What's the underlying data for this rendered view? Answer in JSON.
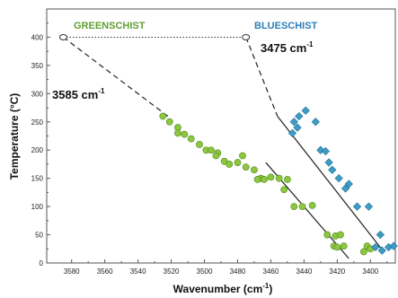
{
  "chart_data": {
    "type": "scatter",
    "xlabel": "Wavenumber",
    "xlabel_unit_base": "cm",
    "xlabel_unit_exp": "-1",
    "ylabel": "Temperature (°C)",
    "xlim": [
      3595,
      3385
    ],
    "ylim": [
      0,
      450
    ],
    "x_reversed": true,
    "x_ticks": [
      3580,
      3560,
      3540,
      3520,
      3500,
      3480,
      3460,
      3440,
      3420,
      3400
    ],
    "y_ticks": [
      0,
      50,
      100,
      150,
      200,
      250,
      300,
      350,
      400
    ],
    "grid": false,
    "series": [
      {
        "name": "GREENSCHIST",
        "color": "#8dc63f",
        "marker": "circle",
        "points": [
          [
            3525,
            260
          ],
          [
            3521,
            250
          ],
          [
            3516,
            240
          ],
          [
            3516,
            230
          ],
          [
            3512,
            228
          ],
          [
            3508,
            220
          ],
          [
            3503,
            210
          ],
          [
            3499,
            200
          ],
          [
            3496,
            200
          ],
          [
            3492,
            195
          ],
          [
            3493,
            190
          ],
          [
            3488,
            180
          ],
          [
            3485,
            175
          ],
          [
            3480,
            178
          ],
          [
            3477,
            190
          ],
          [
            3475,
            170
          ],
          [
            3470,
            165
          ],
          [
            3466,
            150
          ],
          [
            3468,
            148
          ],
          [
            3464,
            148
          ],
          [
            3460,
            152
          ],
          [
            3455,
            150
          ],
          [
            3450,
            148
          ],
          [
            3452,
            130
          ],
          [
            3446,
            100
          ],
          [
            3441,
            100
          ],
          [
            3435,
            102
          ],
          [
            3426,
            50
          ],
          [
            3421,
            48
          ],
          [
            3418,
            50
          ],
          [
            3422,
            30
          ],
          [
            3420,
            28
          ],
          [
            3416,
            30
          ],
          [
            3402,
            30
          ],
          [
            3400,
            25
          ],
          [
            3404,
            20
          ]
        ],
        "fit_from": [
          3463,
          178
        ],
        "fit_to": [
          3413,
          8
        ]
      },
      {
        "name": "BLUESCHIST",
        "color": "#3d9cc6",
        "marker": "diamond",
        "points": [
          [
            3446,
            250
          ],
          [
            3443,
            260
          ],
          [
            3444,
            240
          ],
          [
            3447,
            230
          ],
          [
            3439,
            270
          ],
          [
            3433,
            250
          ],
          [
            3430,
            200
          ],
          [
            3427,
            198
          ],
          [
            3425,
            178
          ],
          [
            3423,
            165
          ],
          [
            3419,
            150
          ],
          [
            3415,
            132
          ],
          [
            3413,
            140
          ],
          [
            3408,
            100
          ],
          [
            3401,
            100
          ],
          [
            3397,
            28
          ],
          [
            3393,
            22
          ],
          [
            3394,
            50
          ],
          [
            3389,
            28
          ],
          [
            3386,
            30
          ]
        ],
        "fit_from": [
          3456,
          260
        ],
        "fit_to": [
          3392,
          20
        ]
      }
    ],
    "annotations": [
      {
        "value_base": "3585 cm",
        "value_exp": "-1",
        "at": [
          3585,
          400
        ]
      },
      {
        "value_base": "3475 cm",
        "value_exp": "-1",
        "at": [
          3475,
          400
        ]
      }
    ],
    "dotted_line": {
      "y": 400,
      "from_x": 3585,
      "to_x": 3475
    },
    "extrapolations": [
      {
        "from": [
          3585,
          400
        ],
        "to": [
          3522,
          260
        ]
      },
      {
        "from": [
          3475,
          400
        ],
        "to": [
          3456,
          260
        ]
      }
    ]
  }
}
